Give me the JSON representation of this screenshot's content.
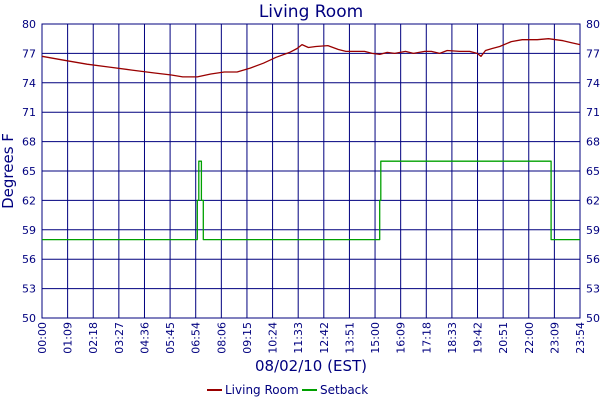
{
  "chart_data": {
    "type": "line",
    "title": "Living Room",
    "xlabel": "08/02/10 (EST)",
    "ylabel": "Degrees F",
    "ylim": [
      50,
      80
    ],
    "xlim_minutes": [
      0,
      1434
    ],
    "y_ticks": [
      "50",
      "53",
      "56",
      "59",
      "62",
      "65",
      "68",
      "71",
      "74",
      "77",
      "80"
    ],
    "x_ticks": [
      "00:00",
      "01:09",
      "02:18",
      "03:27",
      "04:36",
      "05:45",
      "06:54",
      "08:06",
      "09:15",
      "10:24",
      "11:33",
      "12:42",
      "13:51",
      "15:00",
      "16:09",
      "17:18",
      "18:33",
      "19:42",
      "20:51",
      "22:00",
      "23:09",
      "23:54"
    ],
    "grid": true,
    "legend_position": "bottom",
    "series": [
      {
        "name": "Living Room",
        "color": "#990000",
        "time": [
          "00:00",
          "01:00",
          "02:00",
          "03:00",
          "04:00",
          "05:00",
          "05:45",
          "06:15",
          "06:54",
          "07:30",
          "08:06",
          "08:40",
          "09:15",
          "09:50",
          "10:24",
          "11:00",
          "11:20",
          "11:33",
          "11:50",
          "12:10",
          "12:42",
          "13:10",
          "13:30",
          "13:51",
          "14:20",
          "14:40",
          "15:00",
          "15:20",
          "15:40",
          "16:09",
          "16:30",
          "17:00",
          "17:18",
          "17:40",
          "18:00",
          "18:33",
          "19:00",
          "19:20",
          "19:30",
          "19:42",
          "20:00",
          "20:20",
          "20:51",
          "21:20",
          "22:00",
          "22:30",
          "23:09",
          "23:30",
          "23:54"
        ],
        "values": [
          76.7,
          76.3,
          75.9,
          75.6,
          75.3,
          75.0,
          74.8,
          74.6,
          74.6,
          74.9,
          75.1,
          75.1,
          75.5,
          76.0,
          76.6,
          77.1,
          77.5,
          77.9,
          77.6,
          77.7,
          77.8,
          77.4,
          77.2,
          77.2,
          77.2,
          77.0,
          76.9,
          77.1,
          77.0,
          77.2,
          77.0,
          77.2,
          77.2,
          77.0,
          77.3,
          77.2,
          77.2,
          77.0,
          76.7,
          77.3,
          77.5,
          77.7,
          78.2,
          78.4,
          78.4,
          78.5,
          78.3,
          78.1,
          77.9
        ]
      },
      {
        "name": "Setback",
        "color": "#00a000",
        "time": [
          "00:00",
          "06:54",
          "06:54",
          "06:58",
          "06:58",
          "07:05",
          "07:05",
          "07:10",
          "07:10",
          "07:14",
          "07:14",
          "15:00",
          "15:00",
          "15:03",
          "15:03",
          "22:37",
          "22:37",
          "23:54"
        ],
        "values": [
          58,
          58,
          62,
          62,
          66,
          66,
          62,
          62,
          58,
          58,
          58,
          58,
          62,
          62,
          66,
          66,
          58,
          58
        ]
      }
    ]
  }
}
